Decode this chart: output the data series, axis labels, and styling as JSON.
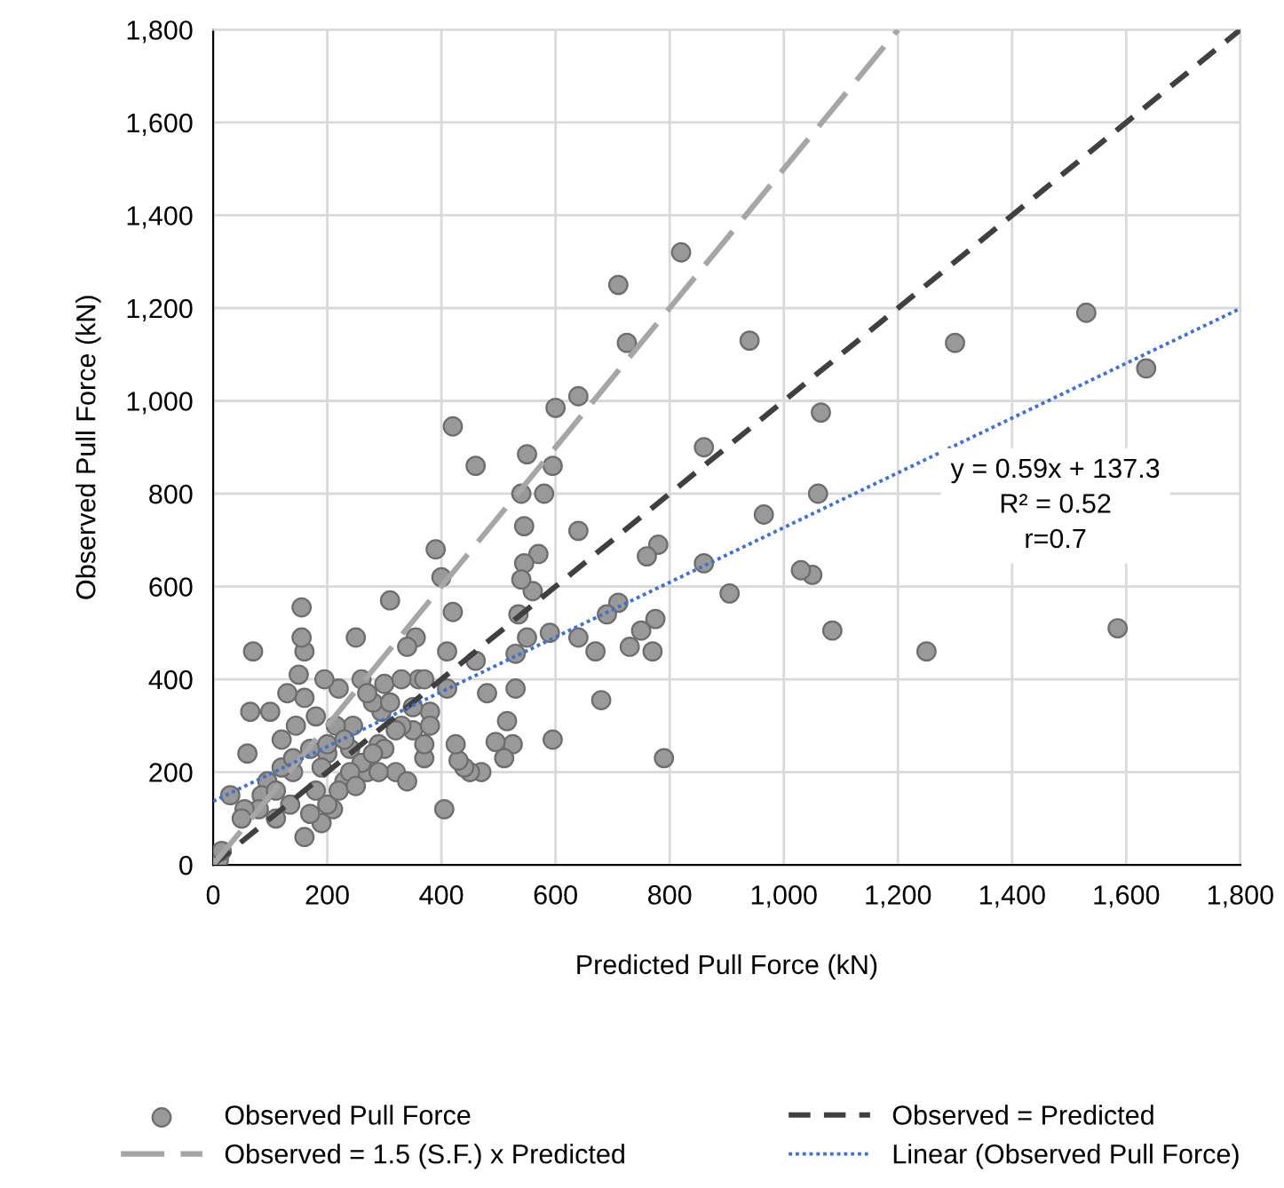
{
  "chart_data": {
    "type": "scatter",
    "xlabel": "Predicted Pull Force (kN)",
    "ylabel": "Observed Pull Force (kN)",
    "xlim": [
      0,
      1800
    ],
    "ylim": [
      0,
      1800
    ],
    "xticks": [
      0,
      200,
      400,
      600,
      800,
      {
        "value": 1000,
        "label": "1,000"
      },
      {
        "value": 1200,
        "label": "1,200"
      },
      {
        "value": 1400,
        "label": "1,400"
      },
      {
        "value": 1600,
        "label": "1,600"
      },
      {
        "value": 1800,
        "label": "1,800"
      }
    ],
    "yticks": [
      0,
      200,
      400,
      600,
      800,
      {
        "value": 1000,
        "label": "1,000"
      },
      {
        "value": 1200,
        "label": "1,200"
      },
      {
        "value": 1400,
        "label": "1,400"
      },
      {
        "value": 1600,
        "label": "1,600"
      },
      {
        "value": 1800,
        "label": "1,800"
      }
    ],
    "grid": true,
    "legend": "bottom",
    "annotations": [
      "y = 0.59x + 137.3\nR² = 0.52\nr=0.7"
    ],
    "series": [
      {
        "name": "Observed Pull Force",
        "marker": "circle",
        "color": "#999999",
        "x": [
          1530,
          1635,
          1585,
          1250,
          1300,
          1060,
          1065,
          1050,
          1030,
          1085,
          965,
          940,
          905,
          860,
          860,
          820,
          790,
          780,
          775,
          770,
          760,
          750,
          730,
          725,
          710,
          710,
          690,
          680,
          670,
          640,
          640,
          640,
          600,
          595,
          595,
          590,
          580,
          570,
          560,
          550,
          550,
          545,
          545,
          540,
          540,
          535,
          530,
          530,
          525,
          515,
          510,
          495,
          480,
          470,
          460,
          460,
          450,
          440,
          430,
          425,
          420,
          420,
          410,
          410,
          400,
          405,
          390,
          380,
          370,
          360,
          355,
          350,
          340,
          330,
          320,
          310,
          300,
          295,
          290,
          280,
          270,
          260,
          250,
          245,
          240,
          230,
          220,
          215,
          210,
          200,
          195,
          190,
          180,
          170,
          160,
          160,
          155,
          155,
          150,
          145,
          140,
          135,
          130,
          120,
          110,
          100,
          95,
          85,
          80,
          70,
          65,
          60,
          55,
          50,
          30,
          10,
          15,
          180,
          200,
          230,
          260,
          270,
          300,
          320,
          340,
          350,
          370,
          190,
          170,
          160,
          200,
          220,
          240,
          280,
          290,
          310,
          330,
          370,
          380,
          250,
          120,
          140,
          110
        ],
        "values": [
          1190,
          1070,
          510,
          460,
          1125,
          800,
          975,
          625,
          635,
          505,
          755,
          1130,
          585,
          900,
          650,
          1320,
          230,
          690,
          530,
          460,
          665,
          505,
          470,
          1125,
          1250,
          565,
          540,
          355,
          460,
          1010,
          720,
          490,
          985,
          860,
          270,
          500,
          800,
          670,
          590,
          885,
          490,
          730,
          650,
          800,
          615,
          540,
          455,
          380,
          260,
          310,
          230,
          265,
          370,
          200,
          860,
          440,
          200,
          210,
          225,
          260,
          945,
          545,
          460,
          380,
          620,
          120,
          680,
          330,
          230,
          400,
          490,
          290,
          470,
          300,
          200,
          570,
          390,
          330,
          260,
          350,
          200,
          400,
          490,
          300,
          250,
          180,
          380,
          300,
          120,
          240,
          400,
          210,
          160,
          250,
          460,
          360,
          555,
          490,
          410,
          300,
          200,
          130,
          370,
          270,
          100,
          330,
          180,
          150,
          120,
          460,
          330,
          240,
          120,
          100,
          150,
          10,
          30,
          320,
          260,
          270,
          220,
          370,
          250,
          290,
          180,
          340,
          260,
          90,
          110,
          60,
          130,
          160,
          200,
          240,
          200,
          350,
          400,
          400,
          300,
          170,
          210,
          230,
          160
        ]
      },
      {
        "name": "Observed = Predicted",
        "type": "line",
        "marker": "none",
        "line_style": "dashed",
        "color": "#404040",
        "x": [
          0,
          1800
        ],
        "values": [
          0,
          1800
        ]
      },
      {
        "name": "Observed = 1.5 (S.F.) x Predicted",
        "type": "line",
        "marker": "none",
        "line_style": "longdash",
        "color": "#a6a6a6",
        "x": [
          0,
          1200
        ],
        "values": [
          0,
          1800
        ]
      },
      {
        "name": "Linear (Observed Pull Force)",
        "type": "line",
        "marker": "none",
        "line_style": "dotted",
        "color": "#4472c4",
        "x": [
          0,
          1800
        ],
        "values": [
          137,
          1199
        ]
      }
    ]
  }
}
